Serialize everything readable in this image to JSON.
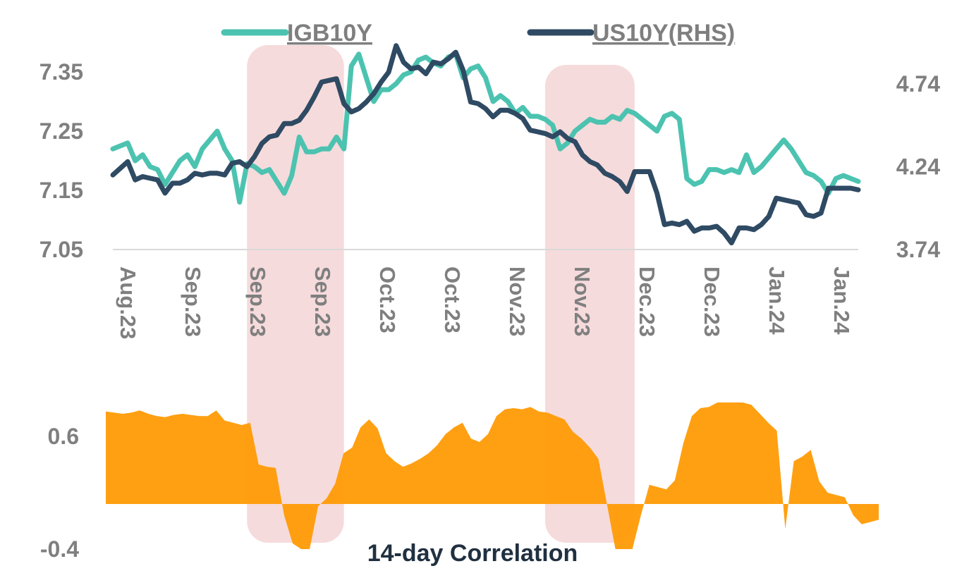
{
  "chart_data": [
    {
      "type": "line",
      "series": [
        {
          "name": "IGB10Y",
          "axis": "left",
          "color": "#4cc3b0",
          "values": [
            7.22,
            7.225,
            7.23,
            7.2,
            7.21,
            7.19,
            7.185,
            7.16,
            7.18,
            7.2,
            7.21,
            7.19,
            7.22,
            7.235,
            7.25,
            7.22,
            7.2,
            7.13,
            7.195,
            7.19,
            7.18,
            7.185,
            7.165,
            7.145,
            7.175,
            7.24,
            7.215,
            7.215,
            7.22,
            7.22,
            7.24,
            7.22,
            7.36,
            7.38,
            7.34,
            7.3,
            7.32,
            7.32,
            7.33,
            7.345,
            7.35,
            7.37,
            7.375,
            7.365,
            7.36,
            7.375,
            7.38,
            7.34,
            7.355,
            7.36,
            7.34,
            7.3,
            7.31,
            7.3,
            7.28,
            7.29,
            7.275,
            7.275,
            7.27,
            7.26,
            7.22,
            7.23,
            7.25,
            7.26,
            7.27,
            7.265,
            7.265,
            7.275,
            7.27,
            7.285,
            7.28,
            7.27,
            7.26,
            7.25,
            7.275,
            7.28,
            7.27,
            7.17,
            7.16,
            7.165,
            7.185,
            7.185,
            7.18,
            7.185,
            7.18,
            7.21,
            7.18,
            7.19,
            7.205,
            7.22,
            7.235,
            7.22,
            7.2,
            7.18,
            7.175,
            7.165,
            7.145,
            7.17,
            7.175,
            7.17,
            7.165
          ]
        },
        {
          "name": "US10Y(RHS)",
          "axis": "right",
          "color": "#2f4a63",
          "values": [
            4.19,
            4.23,
            4.27,
            4.16,
            4.18,
            4.17,
            4.16,
            4.08,
            4.14,
            4.14,
            4.16,
            4.2,
            4.19,
            4.2,
            4.2,
            4.19,
            4.26,
            4.27,
            4.24,
            4.3,
            4.38,
            4.42,
            4.43,
            4.5,
            4.5,
            4.52,
            4.58,
            4.66,
            4.75,
            4.76,
            4.77,
            4.62,
            4.57,
            4.59,
            4.63,
            4.68,
            4.75,
            4.81,
            4.97,
            4.87,
            4.83,
            4.84,
            4.8,
            4.87,
            4.86,
            4.89,
            4.93,
            4.82,
            4.63,
            4.62,
            4.59,
            4.54,
            4.58,
            4.58,
            4.56,
            4.53,
            4.46,
            4.45,
            4.44,
            4.42,
            4.45,
            4.41,
            4.39,
            4.31,
            4.27,
            4.25,
            4.2,
            4.18,
            4.15,
            4.09,
            4.21,
            4.21,
            4.21,
            4.08,
            3.89,
            3.9,
            3.89,
            3.91,
            3.85,
            3.87,
            3.87,
            3.88,
            3.84,
            3.78,
            3.87,
            3.87,
            3.86,
            3.89,
            3.94,
            4.05,
            4.04,
            4.03,
            4.02,
            3.95,
            3.94,
            3.96,
            4.11,
            4.11,
            4.11,
            4.11,
            4.1
          ]
        }
      ],
      "y_left": {
        "ticks": [
          "7.35",
          "7.25",
          "7.15",
          "7.05"
        ],
        "min": 7.05,
        "max": 7.4
      },
      "y_right": {
        "ticks": [
          "4.74",
          "4.24",
          "3.74"
        ],
        "min": 3.74,
        "max": 4.99
      },
      "x_ticks": [
        "Aug.23",
        "Sep.23",
        "Sep.23",
        "Sep.23",
        "Oct.23",
        "Oct.23",
        "Nov.23",
        "Nov.23",
        "Dec.23",
        "Dec.23",
        "Jan.24",
        "Jan.24"
      ],
      "legend_placement": "top",
      "grid": false
    },
    {
      "type": "area",
      "title": "14-day Correlation",
      "color": "#ff9900",
      "y_ticks": [
        "0.6",
        "-0.4"
      ],
      "ylim": [
        -0.4,
        0.95
      ],
      "values": [
        0.82,
        0.81,
        0.8,
        0.81,
        0.83,
        0.8,
        0.78,
        0.77,
        0.79,
        0.8,
        0.79,
        0.78,
        0.78,
        0.83,
        0.74,
        0.72,
        0.7,
        0.72,
        0.35,
        0.33,
        0.32,
        -0.1,
        -0.35,
        -0.4,
        -0.4,
        -0.02,
        0.05,
        0.18,
        0.45,
        0.5,
        0.68,
        0.75,
        0.67,
        0.45,
        0.38,
        0.33,
        0.36,
        0.4,
        0.45,
        0.52,
        0.62,
        0.68,
        0.72,
        0.58,
        0.55,
        0.62,
        0.78,
        0.84,
        0.85,
        0.84,
        0.86,
        0.82,
        0.81,
        0.78,
        0.75,
        0.64,
        0.58,
        0.5,
        0.4,
        0.0,
        -0.4,
        -0.4,
        -0.4,
        -0.1,
        0.17,
        0.15,
        0.13,
        0.21,
        0.54,
        0.78,
        0.85,
        0.86,
        0.9,
        0.9,
        0.9,
        0.9,
        0.88,
        0.8,
        0.72,
        0.65,
        -0.22,
        0.38,
        0.42,
        0.48,
        0.2,
        0.1,
        0.08,
        0.06,
        -0.1,
        -0.18,
        -0.16,
        -0.14
      ]
    }
  ],
  "highlight_bands": [
    {
      "from_index": 18,
      "to_index": 31
    },
    {
      "from_index": 58,
      "to_index": 70
    }
  ],
  "band_color": "#f4d5d6"
}
